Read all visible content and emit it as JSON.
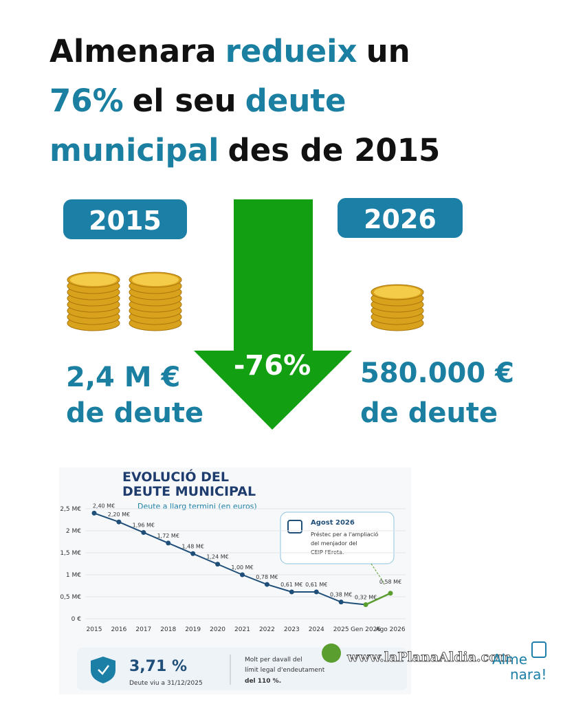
{
  "headline": [
    [
      {
        "text": "Almenara",
        "accent": false
      },
      {
        "text": "redueix",
        "accent": true
      },
      {
        "text": "un",
        "accent": false
      }
    ],
    [
      {
        "text": "76%",
        "accent": true
      },
      {
        "text": "el seu",
        "accent": false
      },
      {
        "text": "deute",
        "accent": true
      }
    ],
    [
      {
        "text": "municipal",
        "accent": true
      },
      {
        "text": "des de 2015",
        "accent": false
      }
    ]
  ],
  "comparison": {
    "before": {
      "year": "2015",
      "amount": "2,4 M €",
      "caption": "de deute"
    },
    "after": {
      "year": "2026",
      "amount": "580.000 €",
      "caption": "de deute"
    },
    "change": "-76%"
  },
  "chart_data": {
    "type": "line",
    "title": [
      "EVOLUCIÓ DEL",
      "DEUTE MUNICIPAL"
    ],
    "subtitle": "Deute a llarg termini (en euros)",
    "categories": [
      "2015",
      "2016",
      "2017",
      "2018",
      "2019",
      "2020",
      "2021",
      "2022",
      "2023",
      "2024",
      "2025",
      "Gen 2026",
      "Ago 2026"
    ],
    "values": [
      2.4,
      2.2,
      1.96,
      1.72,
      1.48,
      1.24,
      1.0,
      0.78,
      0.61,
      0.61,
      0.38,
      0.32,
      0.58
    ],
    "value_labels": [
      "2,40 M€",
      "2,20 M€",
      "1,96 M€",
      "1,72 M€",
      "1,48 M€",
      "1,24 M€",
      "1,00 M€",
      "0,78 M€",
      "0,61 M€",
      "0,61 M€",
      "0,38 M€",
      "0,32 M€",
      "0,58 M€"
    ],
    "color": "#1f4e79",
    "last_segment_color": "#5a9e2f",
    "ylim": [
      0,
      2.5
    ],
    "yticks": [
      {
        "value": 0,
        "label": "0 €"
      },
      {
        "value": 0.5,
        "label": "0,5 M€"
      },
      {
        "value": 1,
        "label": "1 M€"
      },
      {
        "value": 1.5,
        "label": "1,5 M€"
      },
      {
        "value": 2,
        "label": "2 M€"
      },
      {
        "value": 2.5,
        "label": "2,5 M€"
      }
    ],
    "annotation": {
      "title": "Agost 2026",
      "lines": [
        "Préstec per a l'ampliació",
        "del menjador del",
        "CEIP l'Ereta."
      ]
    }
  },
  "footer": {
    "ratio": "3,71 %",
    "ratio_caption": "Deute viu a 31/12/2025",
    "note": [
      "Molt per davall del",
      "límit legal d'endeutament",
      "del 110 %."
    ]
  },
  "watermark": "www.laPlanaAldia.com",
  "logo": [
    "Alme",
    "nara!"
  ]
}
